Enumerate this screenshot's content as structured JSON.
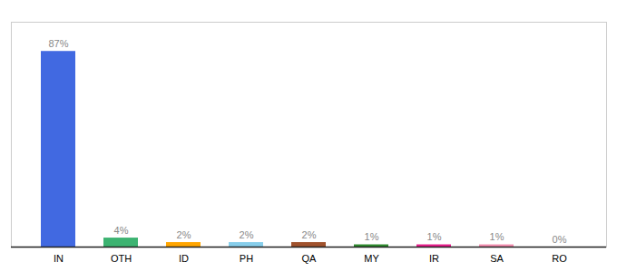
{
  "chart_data": {
    "type": "bar",
    "categories": [
      "IN",
      "OTH",
      "ID",
      "PH",
      "QA",
      "MY",
      "IR",
      "SA",
      "RO"
    ],
    "values": [
      87,
      4,
      2,
      2,
      2,
      1,
      1,
      1,
      0
    ],
    "value_labels": [
      "87%",
      "4%",
      "2%",
      "2%",
      "2%",
      "1%",
      "1%",
      "1%",
      "0%"
    ],
    "colors": [
      "#4169e1",
      "#3cb371",
      "#ffa500",
      "#87ceeb",
      "#a0522d",
      "#2e8b2e",
      "#e91e8c",
      "#f48fb1",
      "#cccccc"
    ],
    "ylim": [
      0,
      100
    ],
    "data_labels": true,
    "tick_labels": "x"
  }
}
